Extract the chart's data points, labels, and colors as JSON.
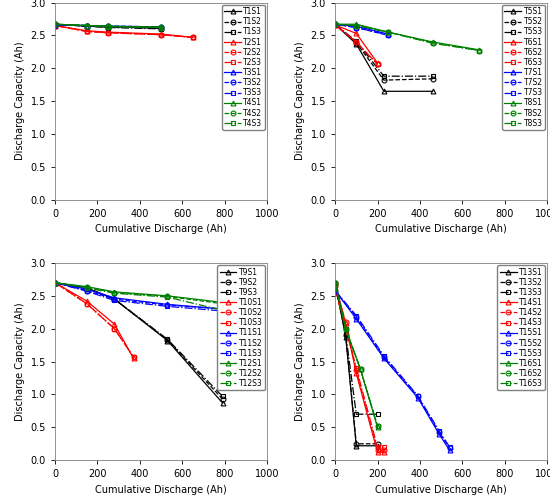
{
  "subplot1": {
    "series": [
      {
        "label": "T1S1",
        "color": "black",
        "linestyle": "-",
        "marker": "^",
        "x": [
          0,
          150,
          250,
          500
        ],
        "y": [
          2.67,
          2.64,
          2.63,
          2.61
        ]
      },
      {
        "label": "T1S2",
        "color": "black",
        "linestyle": "--",
        "marker": "o",
        "x": [
          0,
          150,
          250,
          500
        ],
        "y": [
          2.67,
          2.64,
          2.63,
          2.61
        ]
      },
      {
        "label": "T1S3",
        "color": "black",
        "linestyle": "-.",
        "marker": "s",
        "x": [
          0,
          150,
          250,
          500
        ],
        "y": [
          2.67,
          2.64,
          2.62,
          2.6
        ]
      },
      {
        "label": "T2S1",
        "color": "red",
        "linestyle": "-",
        "marker": "^",
        "x": [
          0,
          150,
          250,
          500,
          650
        ],
        "y": [
          2.65,
          2.57,
          2.55,
          2.52,
          2.47
        ]
      },
      {
        "label": "T2S2",
        "color": "red",
        "linestyle": "--",
        "marker": "o",
        "x": [
          0,
          150,
          250,
          500,
          650
        ],
        "y": [
          2.65,
          2.56,
          2.54,
          2.51,
          2.47
        ]
      },
      {
        "label": "T2S3",
        "color": "red",
        "linestyle": "-.",
        "marker": "s",
        "x": [
          0,
          150,
          250,
          500,
          650
        ],
        "y": [
          2.65,
          2.56,
          2.54,
          2.51,
          2.47
        ]
      },
      {
        "label": "T3S1",
        "color": "blue",
        "linestyle": "-",
        "marker": "^",
        "x": [
          0,
          150,
          250,
          500
        ],
        "y": [
          2.66,
          2.65,
          2.64,
          2.63
        ]
      },
      {
        "label": "T3S2",
        "color": "blue",
        "linestyle": "--",
        "marker": "o",
        "x": [
          0,
          150,
          250,
          500
        ],
        "y": [
          2.66,
          2.65,
          2.64,
          2.63
        ]
      },
      {
        "label": "T3S3",
        "color": "blue",
        "linestyle": "-.",
        "marker": "s",
        "x": [
          0,
          150,
          250,
          500
        ],
        "y": [
          2.66,
          2.65,
          2.63,
          2.62
        ]
      },
      {
        "label": "T4S1",
        "color": "green",
        "linestyle": "-",
        "marker": "^",
        "x": [
          0,
          150,
          250,
          500
        ],
        "y": [
          2.67,
          2.65,
          2.64,
          2.62
        ]
      },
      {
        "label": "T4S2",
        "color": "green",
        "linestyle": "--",
        "marker": "o",
        "x": [
          0,
          150,
          250,
          500
        ],
        "y": [
          2.67,
          2.65,
          2.64,
          2.63
        ]
      },
      {
        "label": "T4S3",
        "color": "green",
        "linestyle": "-.",
        "marker": "s",
        "x": [
          0,
          150,
          250,
          500
        ],
        "y": [
          2.67,
          2.65,
          2.63,
          2.62
        ]
      }
    ]
  },
  "subplot2": {
    "series": [
      {
        "label": "T5S1",
        "color": "black",
        "linestyle": "-",
        "marker": "^",
        "x": [
          0,
          100,
          230,
          460
        ],
        "y": [
          2.67,
          2.37,
          1.65,
          1.65
        ]
      },
      {
        "label": "T5S2",
        "color": "black",
        "linestyle": "--",
        "marker": "o",
        "x": [
          0,
          100,
          230,
          460
        ],
        "y": [
          2.67,
          2.39,
          1.82,
          1.84
        ]
      },
      {
        "label": "T5S3",
        "color": "black",
        "linestyle": "-.",
        "marker": "s",
        "x": [
          0,
          100,
          230,
          460
        ],
        "y": [
          2.67,
          2.41,
          1.88,
          1.88
        ]
      },
      {
        "label": "T6S1",
        "color": "red",
        "linestyle": "-",
        "marker": "^",
        "x": [
          0,
          100,
          200
        ],
        "y": [
          2.66,
          2.53,
          2.08
        ]
      },
      {
        "label": "T6S2",
        "color": "red",
        "linestyle": "--",
        "marker": "o",
        "x": [
          0,
          100,
          200
        ],
        "y": [
          2.66,
          2.4,
          2.06
        ]
      },
      {
        "label": "T6S3",
        "color": "red",
        "linestyle": "-.",
        "marker": "s",
        "x": [
          0,
          100,
          200
        ],
        "y": [
          2.66,
          2.4,
          2.06
        ]
      },
      {
        "label": "T7S1",
        "color": "blue",
        "linestyle": "-",
        "marker": "^",
        "x": [
          0,
          100,
          250
        ],
        "y": [
          2.67,
          2.64,
          2.52
        ]
      },
      {
        "label": "T7S2",
        "color": "blue",
        "linestyle": "--",
        "marker": "o",
        "x": [
          0,
          100,
          250
        ],
        "y": [
          2.67,
          2.62,
          2.5
        ]
      },
      {
        "label": "T7S3",
        "color": "blue",
        "linestyle": "-.",
        "marker": "s",
        "x": [
          0,
          100,
          250
        ],
        "y": [
          2.67,
          2.62,
          2.51
        ]
      },
      {
        "label": "T8S1",
        "color": "green",
        "linestyle": "-",
        "marker": "^",
        "x": [
          0,
          100,
          250,
          460,
          680
        ],
        "y": [
          2.67,
          2.67,
          2.55,
          2.4,
          2.28
        ]
      },
      {
        "label": "T8S2",
        "color": "green",
        "linestyle": "--",
        "marker": "o",
        "x": [
          0,
          100,
          250,
          460,
          680
        ],
        "y": [
          2.67,
          2.65,
          2.55,
          2.39,
          2.27
        ]
      },
      {
        "label": "T8S3",
        "color": "green",
        "linestyle": "-.",
        "marker": "s",
        "x": [
          0,
          100,
          250,
          460,
          680
        ],
        "y": [
          2.67,
          2.65,
          2.55,
          2.38,
          2.27
        ]
      }
    ]
  },
  "subplot3": {
    "series": [
      {
        "label": "T9S1",
        "color": "black",
        "linestyle": "-",
        "marker": "^",
        "x": [
          0,
          150,
          280,
          530,
          790
        ],
        "y": [
          2.7,
          2.62,
          2.45,
          1.82,
          0.87
        ]
      },
      {
        "label": "T9S2",
        "color": "black",
        "linestyle": "--",
        "marker": "o",
        "x": [
          0,
          150,
          280,
          530,
          790
        ],
        "y": [
          2.7,
          2.62,
          2.45,
          1.83,
          0.93
        ]
      },
      {
        "label": "T9S3",
        "color": "black",
        "linestyle": "-.",
        "marker": "s",
        "x": [
          0,
          150,
          280,
          530,
          790
        ],
        "y": [
          2.7,
          2.62,
          2.45,
          1.84,
          0.97
        ]
      },
      {
        "label": "T10S1",
        "color": "red",
        "linestyle": "-",
        "marker": "^",
        "x": [
          0,
          150,
          280,
          370
        ],
        "y": [
          2.7,
          2.42,
          2.07,
          1.55
        ]
      },
      {
        "label": "T10S2",
        "color": "red",
        "linestyle": "--",
        "marker": "o",
        "x": [
          0,
          150,
          280,
          370
        ],
        "y": [
          2.7,
          2.38,
          2.0,
          1.57
        ]
      },
      {
        "label": "T10S3",
        "color": "red",
        "linestyle": "-.",
        "marker": "s",
        "x": [
          0,
          150,
          280,
          370
        ],
        "y": [
          2.7,
          2.38,
          2.0,
          1.57
        ]
      },
      {
        "label": "T11S1",
        "color": "blue",
        "linestyle": "-",
        "marker": "^",
        "x": [
          0,
          150,
          280,
          530,
          790
        ],
        "y": [
          2.7,
          2.6,
          2.47,
          2.37,
          2.3
        ]
      },
      {
        "label": "T11S2",
        "color": "blue",
        "linestyle": "--",
        "marker": "o",
        "x": [
          0,
          150,
          280,
          530,
          790
        ],
        "y": [
          2.7,
          2.58,
          2.45,
          2.36,
          2.3
        ]
      },
      {
        "label": "T11S3",
        "color": "blue",
        "linestyle": "-.",
        "marker": "s",
        "x": [
          0,
          150,
          280,
          530,
          790
        ],
        "y": [
          2.7,
          2.57,
          2.43,
          2.34,
          2.27
        ]
      },
      {
        "label": "T12S1",
        "color": "green",
        "linestyle": "-",
        "marker": "^",
        "x": [
          0,
          150,
          280,
          530,
          790
        ],
        "y": [
          2.7,
          2.64,
          2.56,
          2.5,
          2.4
        ]
      },
      {
        "label": "T12S2",
        "color": "green",
        "linestyle": "--",
        "marker": "o",
        "x": [
          0,
          150,
          280,
          530,
          790
        ],
        "y": [
          2.7,
          2.63,
          2.55,
          2.49,
          2.38
        ]
      },
      {
        "label": "T12S3",
        "color": "green",
        "linestyle": "-.",
        "marker": "s",
        "x": [
          0,
          150,
          280,
          530,
          790
        ],
        "y": [
          2.7,
          2.62,
          2.54,
          2.48,
          2.28
        ]
      }
    ]
  },
  "subplot4": {
    "series": [
      {
        "label": "T13S1",
        "color": "black",
        "linestyle": "-",
        "marker": "^",
        "x": [
          0,
          50,
          100,
          200
        ],
        "y": [
          2.7,
          1.88,
          0.22,
          0.22
        ]
      },
      {
        "label": "T13S2",
        "color": "black",
        "linestyle": "--",
        "marker": "o",
        "x": [
          0,
          50,
          100,
          200
        ],
        "y": [
          2.7,
          1.9,
          0.25,
          0.25
        ]
      },
      {
        "label": "T13S3",
        "color": "black",
        "linestyle": "-.",
        "marker": "s",
        "x": [
          0,
          50,
          100,
          200
        ],
        "y": [
          2.7,
          1.92,
          0.7,
          0.7
        ]
      },
      {
        "label": "T14S1",
        "color": "red",
        "linestyle": "-",
        "marker": "^",
        "x": [
          0,
          50,
          100,
          200,
          230
        ],
        "y": [
          2.7,
          2.08,
          1.32,
          0.12,
          0.12
        ]
      },
      {
        "label": "T14S2",
        "color": "red",
        "linestyle": "--",
        "marker": "o",
        "x": [
          0,
          50,
          100,
          200,
          230
        ],
        "y": [
          2.65,
          2.1,
          1.37,
          0.15,
          0.15
        ]
      },
      {
        "label": "T14S3",
        "color": "red",
        "linestyle": "-.",
        "marker": "s",
        "x": [
          0,
          50,
          100,
          200,
          230
        ],
        "y": [
          2.6,
          2.0,
          1.4,
          0.2,
          0.2
        ]
      },
      {
        "label": "T15S1",
        "color": "blue",
        "linestyle": "-",
        "marker": "^",
        "x": [
          0,
          100,
          230,
          390,
          490,
          540
        ],
        "y": [
          2.58,
          2.15,
          1.55,
          0.95,
          0.4,
          0.15
        ]
      },
      {
        "label": "T15S2",
        "color": "blue",
        "linestyle": "--",
        "marker": "o",
        "x": [
          0,
          100,
          230,
          390,
          490,
          540
        ],
        "y": [
          2.58,
          2.18,
          1.57,
          0.97,
          0.43,
          0.18
        ]
      },
      {
        "label": "T15S3",
        "color": "blue",
        "linestyle": "-.",
        "marker": "s",
        "x": [
          0,
          100,
          230,
          390,
          490,
          540
        ],
        "y": [
          2.58,
          2.2,
          1.59,
          0.98,
          0.45,
          0.2
        ]
      },
      {
        "label": "T16S1",
        "color": "green",
        "linestyle": "-",
        "marker": "^",
        "x": [
          0,
          50,
          120,
          200
        ],
        "y": [
          2.7,
          2.0,
          1.38,
          0.5
        ]
      },
      {
        "label": "T16S2",
        "color": "green",
        "linestyle": "--",
        "marker": "o",
        "x": [
          0,
          50,
          120,
          200
        ],
        "y": [
          2.7,
          2.0,
          1.38,
          0.52
        ]
      },
      {
        "label": "T16S3",
        "color": "green",
        "linestyle": "-.",
        "marker": "s",
        "x": [
          0,
          50,
          120,
          200
        ],
        "y": [
          2.7,
          2.0,
          1.38,
          0.52
        ]
      }
    ]
  },
  "xlabel": "Cumulative Discharge (Ah)",
  "ylabel": "Discharge Capacity (Ah)",
  "xlim": [
    0,
    1000
  ],
  "ylim": [
    0,
    3
  ],
  "yticks": [
    0,
    0.5,
    1.0,
    1.5,
    2.0,
    2.5,
    3.0
  ],
  "xticks": [
    0,
    200,
    400,
    600,
    800,
    1000
  ],
  "fontsize": 7,
  "legend_fontsize": 5.5,
  "marker_size": 3.5,
  "linewidth": 0.9
}
